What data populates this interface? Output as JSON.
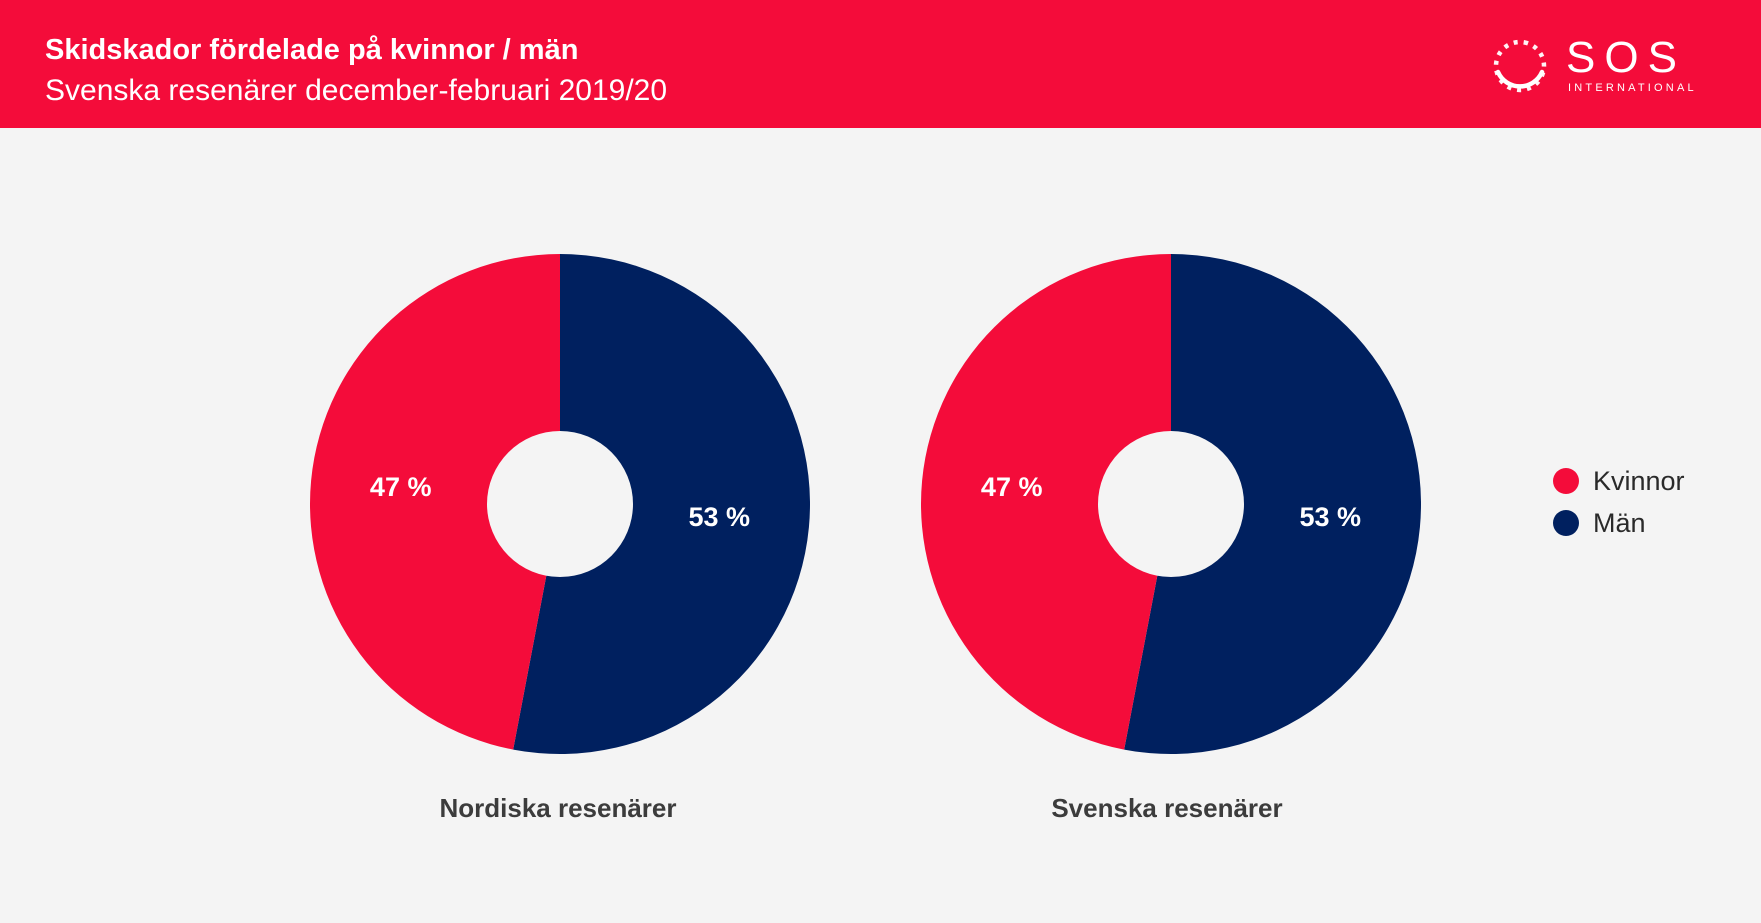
{
  "header": {
    "title": "Skidskador fördelade på kvinnor / män",
    "subtitle": "Svenska resenärer december-februari 2019/20",
    "logo_name": "SOS",
    "logo_tagline": "INTERNATIONAL"
  },
  "colors": {
    "header_bg": "#f40c3a",
    "kvinnor": "#f40c3a",
    "man": "#00205f",
    "background": "#f4f4f4"
  },
  "legend": [
    {
      "label": "Kvinnor",
      "color": "#f40c3a"
    },
    {
      "label": "Män",
      "color": "#00205f"
    }
  ],
  "chart_data": [
    {
      "type": "pie",
      "title": "Nordiska resenärer",
      "categories": [
        "Kvinnor",
        "Män"
      ],
      "values": [
        47,
        53
      ],
      "labels": [
        "47 %",
        "53 %"
      ],
      "legend_position": "right"
    },
    {
      "type": "pie",
      "title": "Svenska resenärer",
      "categories": [
        "Kvinnor",
        "Män"
      ],
      "values": [
        47,
        53
      ],
      "labels": [
        "47 %",
        "53 %"
      ],
      "legend_position": "right"
    }
  ]
}
